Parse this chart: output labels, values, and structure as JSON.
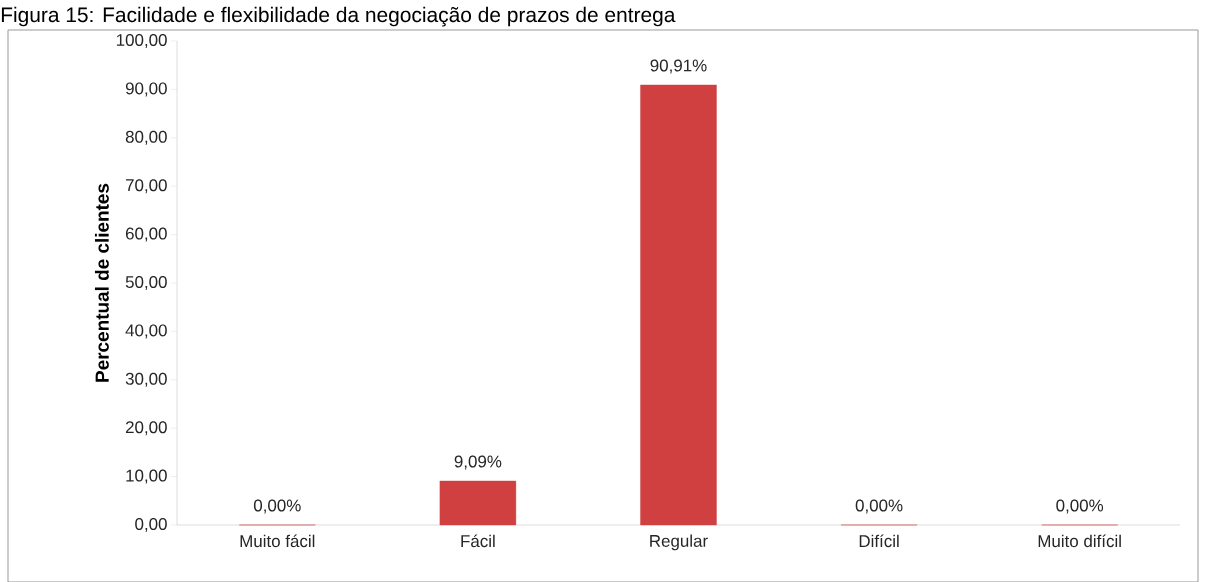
{
  "chart_data": {
    "type": "bar",
    "title": "Figura 15: Facilidade e flexibilidade da negociação de prazos de entrega",
    "ylabel": "Percentual de clientes",
    "categories": [
      "Muito fácil",
      "Fácil",
      "Regular",
      "Difícil",
      "Muito difícil"
    ],
    "values": [
      0,
      9.09,
      90.91,
      0,
      0
    ],
    "value_labels": [
      "0,00%",
      "9,09%",
      "90,91%",
      "0,00%",
      "0,00%"
    ],
    "color": "#d04040",
    "ylim": [
      0,
      100
    ],
    "yticks": [
      {
        "value": 0,
        "label": "0,00"
      },
      {
        "value": 10,
        "label": "10,00"
      },
      {
        "value": 20,
        "label": "20,00"
      },
      {
        "value": 30,
        "label": "30,00"
      },
      {
        "value": 40,
        "label": "40,00"
      },
      {
        "value": 50,
        "label": "50,00"
      },
      {
        "value": 60,
        "label": "60,00"
      },
      {
        "value": 70,
        "label": "70,00"
      },
      {
        "value": 80,
        "label": "80,00"
      },
      {
        "value": 90,
        "label": "90,00"
      },
      {
        "value": 100,
        "label": "100,00"
      }
    ],
    "grid": false
  }
}
